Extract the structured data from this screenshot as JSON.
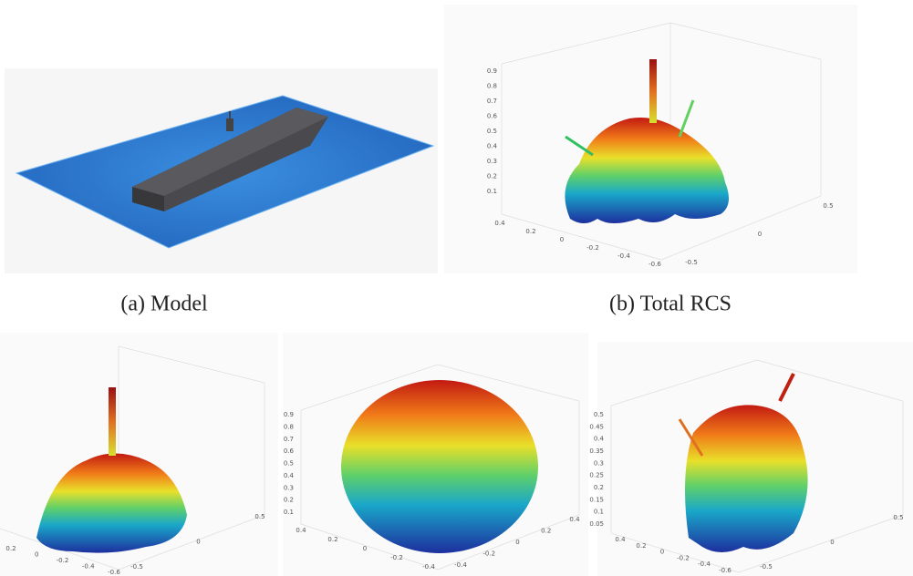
{
  "panels": [
    {
      "caption": "(a) Model"
    },
    {
      "caption": "(b) Total RCS",
      "z_ticks": [
        "0.9",
        "0.8",
        "0.7",
        "0.6",
        "0.5",
        "0.4",
        "0.3",
        "0.2",
        "0.1"
      ],
      "x_ticks": [
        "0.4",
        "0.2",
        "0",
        "-0.2",
        "-0.4",
        "-0.6"
      ],
      "y_ticks": [
        "0.5",
        "0",
        "-0.5"
      ]
    },
    {
      "x_ticks": [
        "0.2",
        "0",
        "-0.2",
        "-0.4",
        "-0.6"
      ],
      "y_ticks": [
        "0.5",
        "0",
        "-0.5"
      ]
    },
    {
      "z_ticks": [
        "0.9",
        "0.8",
        "0.7",
        "0.6",
        "0.5",
        "0.4",
        "0.3",
        "0.2",
        "0.1"
      ],
      "x_ticks": [
        "0.4",
        "0.2",
        "0",
        "-0.2",
        "-0.4"
      ],
      "y_ticks": [
        "0.4",
        "0.2",
        "0",
        "-0.2",
        "-0.4"
      ]
    },
    {
      "z_ticks": [
        "0.5",
        "0.45",
        "0.4",
        "0.35",
        "0.3",
        "0.25",
        "0.2",
        "0.15",
        "0.1",
        "0.05"
      ],
      "x_ticks": [
        "0.4",
        "0.2",
        "0",
        "-0.2",
        "-0.4",
        "-0.6"
      ],
      "y_ticks": [
        "0.5",
        "0",
        "-0.5"
      ]
    }
  ]
}
